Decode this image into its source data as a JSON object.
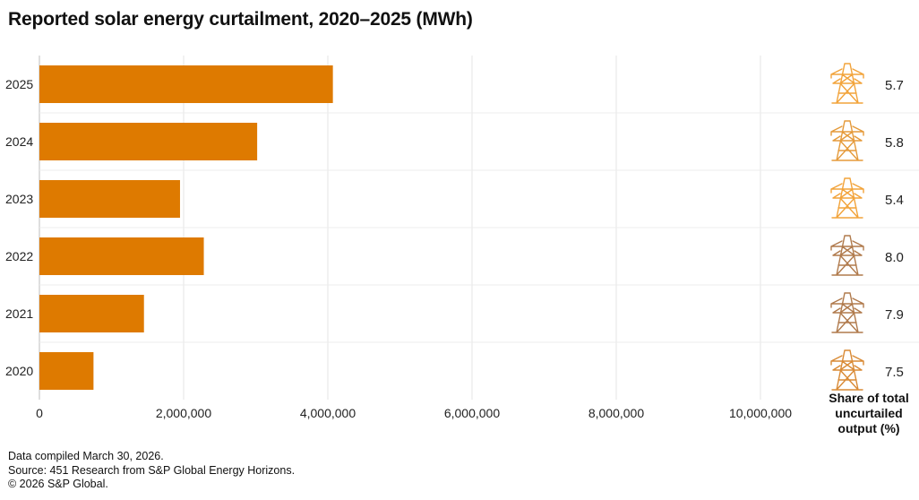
{
  "chart_data": {
    "type": "bar",
    "orientation": "horizontal",
    "title": "Reported solar energy curtailment, 2020–2025 (MWh)",
    "categories": [
      "2025",
      "2024",
      "2023",
      "2022",
      "2021",
      "2020"
    ],
    "values": [
      4070000,
      3020000,
      1950000,
      2280000,
      1450000,
      750000
    ],
    "xlim": [
      0,
      11000000
    ],
    "xticks": [
      0,
      2000000,
      4000000,
      6000000,
      8000000,
      10000000
    ],
    "xtick_labels": [
      "0",
      "2,000,000",
      "4,000,000",
      "6,000,000",
      "8,000,000",
      "10,000,000"
    ],
    "grid": true,
    "bar_color": "#DE7A00",
    "share_of_output": {
      "title": "Share of total uncurtailed output (%)",
      "values": [
        "5.7",
        "5.8",
        "5.4",
        "8.0",
        "7.9",
        "7.5"
      ],
      "icon": "transmission-tower-icon",
      "icon_colors": [
        "#F2A33A",
        "#E59A3A",
        "#F2A33A",
        "#B07A4C",
        "#B07A4C",
        "#D98A35"
      ]
    }
  },
  "footer": {
    "line1": "Data compiled March 30, 2026.",
    "line2": "Source: 451 Research from S&P Global Energy Horizons.",
    "line3": "© 2026 S&P Global."
  }
}
